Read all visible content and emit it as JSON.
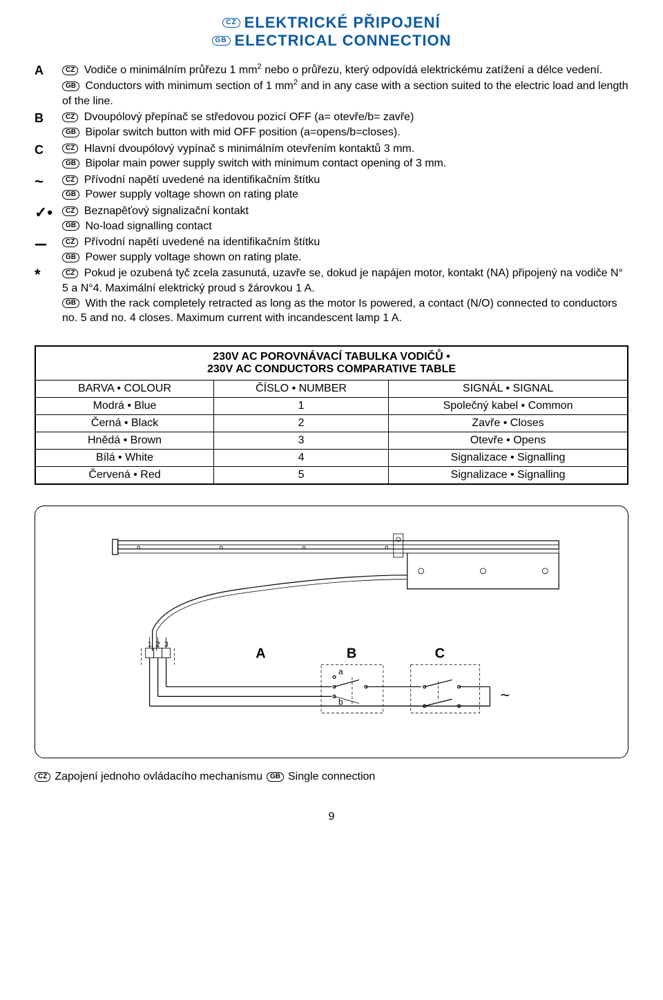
{
  "heading": {
    "cz": "ELEKTRICKÉ PŘIPOJENÍ",
    "gb": "ELECTRICAL CONNECTION",
    "color": "#0b5aa5"
  },
  "definitions": [
    {
      "key": "A",
      "lines": [
        {
          "badge": "CZ",
          "text_html": "Vodiče o minimálním průřezu 1 mm<sup>2</sup> nebo o průřezu, který odpovídá elektrickému zatížení a délce vedení."
        },
        {
          "badge": "GB",
          "text_html": "Conductors with minimum section of 1 mm<sup>2</sup> and in any case with a section suited to the electric load and length of the line."
        }
      ]
    },
    {
      "key": "B",
      "lines": [
        {
          "badge": "CZ",
          "text_html": "Dvoupólový přepínač se středovou pozicí OFF (a= otevře/b= zavře)"
        },
        {
          "badge": "GB",
          "text_html": "Bipolar switch button with mid OFF position (a=opens/b=closes)."
        }
      ]
    },
    {
      "key": "C",
      "lines": [
        {
          "badge": "CZ",
          "text_html": "Hlavní dvoupólový vypínač s minimálním otevřením kontaktů 3 mm."
        },
        {
          "badge": "GB",
          "text_html": "Bipolar main power supply switch with minimum contact opening of 3 mm."
        }
      ]
    },
    {
      "key": "~",
      "sym": true,
      "lines": [
        {
          "badge": "CZ",
          "text_html": "Přívodní napětí uvedené na identifikačním štítku"
        },
        {
          "badge": "GB",
          "text_html": "Power supply voltage shown on rating plate"
        }
      ]
    },
    {
      "key": "✓•",
      "sym": true,
      "lines": [
        {
          "badge": "CZ",
          "text_html": "Beznapěťový signalizační kontakt"
        },
        {
          "badge": "GB",
          "text_html": "No-load signalling contact"
        }
      ]
    },
    {
      "key": "---",
      "sym": true,
      "dash": true,
      "lines": [
        {
          "badge": "CZ",
          "text_html": "Přívodní napětí uvedené na identifikačním štítku"
        },
        {
          "badge": "GB",
          "text_html": "Power supply voltage shown on rating plate."
        }
      ]
    },
    {
      "key": "*",
      "sym": true,
      "lines": [
        {
          "badge": "CZ",
          "text_html": "Pokud je ozubená tyč zcela zasunutá, uzavře se, dokud je napájen motor, kontakt (NA) připojený na vodiče N° 5 a N°4. Maximální elektrický proud s žárovkou 1 A."
        },
        {
          "badge": "GB",
          "text_html": "With the rack completely retracted as long as the motor Is powered, a contact (N/O) connected to conductors no. 5 and no. 4 closes. Maximum current with incandescent lamp 1 A."
        }
      ]
    }
  ],
  "table": {
    "title1": "230V AC POROVNÁVACÍ TABULKA VODIČŮ •",
    "title2": "230V AC CONDUCTORS COMPARATIVE TABLE",
    "headers": [
      "BARVA • COLOUR",
      "ČÍSLO • NUMBER",
      "SIGNÁL • SIGNAL"
    ],
    "rows": [
      [
        "Modrá • Blue",
        "1",
        "Společný kabel • Common"
      ],
      [
        "Černá • Black",
        "2",
        "Zavře • Closes"
      ],
      [
        "Hnědá • Brown",
        "3",
        "Otevře • Opens"
      ],
      [
        "Bílá • White",
        "4",
        "Signalizace • Signalling"
      ],
      [
        "Červená • Red",
        "5",
        "Signalizace • Signalling"
      ]
    ]
  },
  "diagram": {
    "labels": {
      "A": "A",
      "B": "B",
      "C": "C",
      "a": "a",
      "b": "b",
      "tilde": "~",
      "n1": "1",
      "n2": "2",
      "n3": "3"
    }
  },
  "caption": {
    "cz": "Zapojení jednoho ovládacího mechanismu",
    "gb": "Single connection"
  },
  "page": "9"
}
